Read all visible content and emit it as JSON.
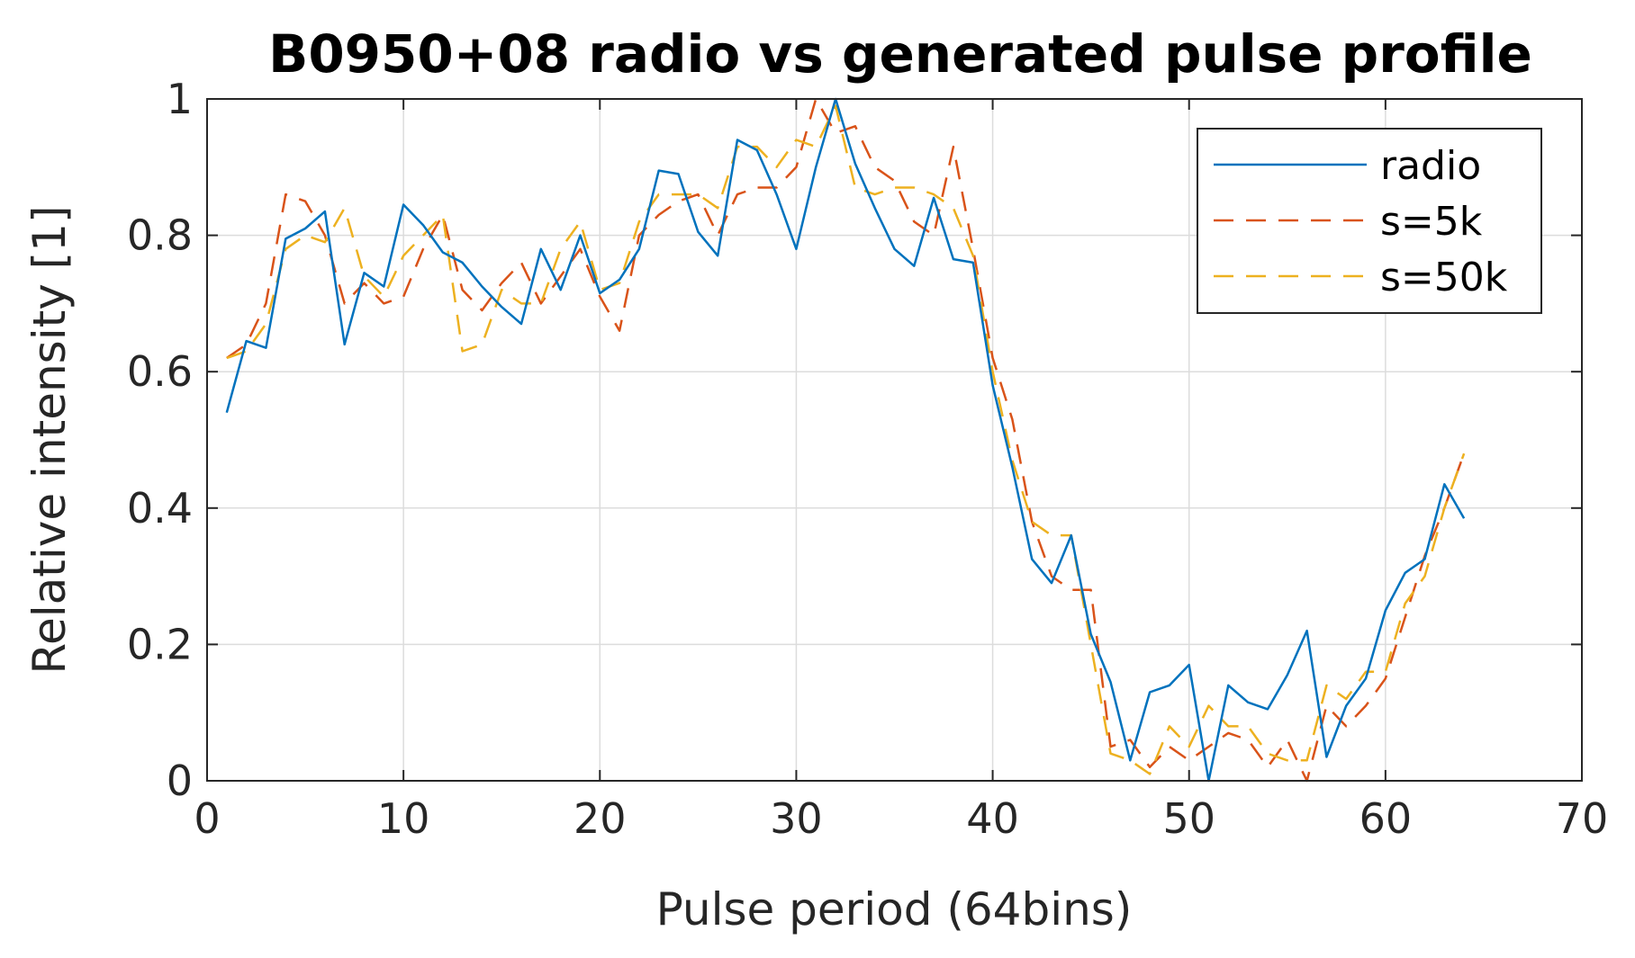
{
  "chart_data": {
    "type": "line",
    "title": "B0950+08 radio vs generated pulse profile",
    "xlabel": "Pulse period (64bins)",
    "ylabel": "Relative intensity [1]",
    "xlim": [
      0,
      70
    ],
    "ylim": [
      0,
      1
    ],
    "xticks": [
      0,
      10,
      20,
      30,
      40,
      50,
      60,
      70
    ],
    "yticks": [
      0,
      0.2,
      0.4,
      0.6,
      0.8,
      1
    ],
    "xtick_labels": [
      "0",
      "10",
      "20",
      "30",
      "40",
      "50",
      "60",
      "70"
    ],
    "ytick_labels": [
      "0",
      "0.2",
      "0.4",
      "0.6",
      "0.8",
      "1"
    ],
    "grid": true,
    "legend_position": "top-right",
    "x": [
      1,
      2,
      3,
      4,
      5,
      6,
      7,
      8,
      9,
      10,
      11,
      12,
      13,
      14,
      15,
      16,
      17,
      18,
      19,
      20,
      21,
      22,
      23,
      24,
      25,
      26,
      27,
      28,
      29,
      30,
      31,
      32,
      33,
      34,
      35,
      36,
      37,
      38,
      39,
      40,
      41,
      42,
      43,
      44,
      45,
      46,
      47,
      48,
      49,
      50,
      51,
      52,
      53,
      54,
      55,
      56,
      57,
      58,
      59,
      60,
      61,
      62,
      63,
      64
    ],
    "series": [
      {
        "name": "radio",
        "color": "#0072BD",
        "dash": "solid",
        "values": [
          0.54,
          0.645,
          0.635,
          0.795,
          0.81,
          0.835,
          0.64,
          0.745,
          0.725,
          0.845,
          0.815,
          0.775,
          0.76,
          0.725,
          0.695,
          0.67,
          0.78,
          0.72,
          0.8,
          0.715,
          0.735,
          0.78,
          0.895,
          0.89,
          0.805,
          0.77,
          0.94,
          0.925,
          0.86,
          0.78,
          0.9,
          1.0,
          0.905,
          0.84,
          0.78,
          0.755,
          0.855,
          0.765,
          0.76,
          0.58,
          0.46,
          0.325,
          0.29,
          0.36,
          0.215,
          0.145,
          0.03,
          0.13,
          0.14,
          0.17,
          0.0,
          0.14,
          0.115,
          0.105,
          0.155,
          0.22,
          0.035,
          0.11,
          0.15,
          0.25,
          0.305,
          0.325,
          0.435,
          0.385
        ]
      },
      {
        "name": "s=5k",
        "color": "#D95319",
        "dash": "dashed",
        "values": [
          0.62,
          0.64,
          0.7,
          0.86,
          0.85,
          0.8,
          0.7,
          0.73,
          0.7,
          0.71,
          0.78,
          0.83,
          0.72,
          0.69,
          0.73,
          0.76,
          0.7,
          0.74,
          0.78,
          0.71,
          0.66,
          0.8,
          0.83,
          0.85,
          0.86,
          0.8,
          0.86,
          0.87,
          0.87,
          0.9,
          1.0,
          0.95,
          0.96,
          0.9,
          0.88,
          0.82,
          0.8,
          0.93,
          0.78,
          0.62,
          0.53,
          0.38,
          0.3,
          0.28,
          0.28,
          0.05,
          0.06,
          0.02,
          0.05,
          0.03,
          0.05,
          0.07,
          0.06,
          0.02,
          0.06,
          0.0,
          0.11,
          0.08,
          0.11,
          0.15,
          0.24,
          0.33,
          0.4,
          0.48
        ]
      },
      {
        "name": "s=50k",
        "color": "#EDB120",
        "dash": "dashed",
        "values": [
          0.62,
          0.63,
          0.67,
          0.78,
          0.8,
          0.79,
          0.84,
          0.74,
          0.71,
          0.77,
          0.8,
          0.83,
          0.63,
          0.64,
          0.72,
          0.7,
          0.7,
          0.78,
          0.82,
          0.72,
          0.73,
          0.82,
          0.86,
          0.86,
          0.86,
          0.84,
          0.93,
          0.93,
          0.9,
          0.94,
          0.93,
          0.99,
          0.87,
          0.86,
          0.87,
          0.87,
          0.86,
          0.84,
          0.77,
          0.6,
          0.47,
          0.38,
          0.36,
          0.36,
          0.2,
          0.04,
          0.03,
          0.01,
          0.08,
          0.05,
          0.11,
          0.08,
          0.08,
          0.04,
          0.03,
          0.03,
          0.14,
          0.12,
          0.16,
          0.16,
          0.26,
          0.3,
          0.4,
          0.48
        ]
      }
    ]
  }
}
